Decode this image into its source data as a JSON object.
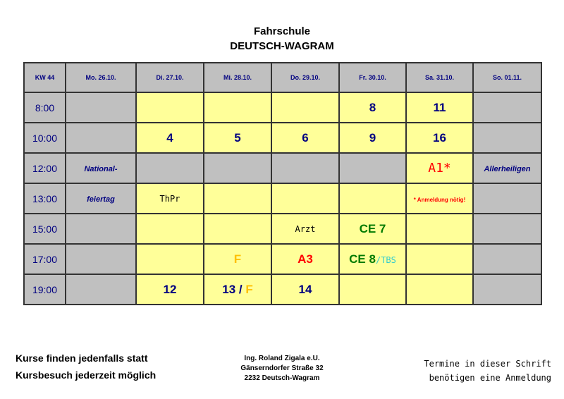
{
  "header": {
    "line1": "Fahrschule",
    "line2": "DEUTSCH-WAGRAM"
  },
  "colors": {
    "navy": "#000080",
    "grey": "#c0c0c0",
    "yellow": "#ffff99",
    "red": "#ff0000",
    "green": "#007a00",
    "orange": "#ffc000",
    "cyan": "#33cccc"
  },
  "table": {
    "week": "KW 44",
    "days": [
      "Mo. 26.10.",
      "Di. 27.10.",
      "Mi. 28.10.",
      "Do. 29.10.",
      "Fr. 30.10.",
      "Sa. 31.10.",
      "So. 01.11."
    ],
    "rows": [
      {
        "time": "8:00",
        "cells": [
          {
            "bg": "g"
          },
          {
            "bg": "y"
          },
          {
            "bg": "y"
          },
          {
            "bg": "y"
          },
          {
            "bg": "y",
            "parts": [
              {
                "t": "8",
                "c": "#000080",
                "k": "big"
              }
            ]
          },
          {
            "bg": "y",
            "parts": [
              {
                "t": "11",
                "c": "#000080",
                "k": "big"
              }
            ]
          },
          {
            "bg": "g"
          }
        ]
      },
      {
        "time": "10:00",
        "cells": [
          {
            "bg": "g"
          },
          {
            "bg": "y",
            "parts": [
              {
                "t": "4",
                "c": "#000080",
                "k": "big"
              }
            ]
          },
          {
            "bg": "y",
            "parts": [
              {
                "t": "5",
                "c": "#000080",
                "k": "big"
              }
            ]
          },
          {
            "bg": "y",
            "parts": [
              {
                "t": "6",
                "c": "#000080",
                "k": "big"
              }
            ]
          },
          {
            "bg": "y",
            "parts": [
              {
                "t": "9",
                "c": "#000080",
                "k": "big"
              }
            ]
          },
          {
            "bg": "y",
            "parts": [
              {
                "t": "16",
                "c": "#000080",
                "k": "big"
              }
            ]
          },
          {
            "bg": "g"
          }
        ]
      },
      {
        "time": "12:00",
        "cells": [
          {
            "bg": "g",
            "parts": [
              {
                "t": "National-",
                "c": "#000080",
                "k": "it"
              }
            ]
          },
          {
            "bg": "g"
          },
          {
            "bg": "g"
          },
          {
            "bg": "g"
          },
          {
            "bg": "g"
          },
          {
            "bg": "y",
            "parts": [
              {
                "t": "A1*",
                "c": "#ff0000",
                "k": "handbig"
              }
            ]
          },
          {
            "bg": "g",
            "parts": [
              {
                "t": "Allerheiligen",
                "c": "#000080",
                "k": "it"
              }
            ]
          }
        ]
      },
      {
        "time": "13:00",
        "cells": [
          {
            "bg": "g",
            "parts": [
              {
                "t": "feiertag",
                "c": "#000080",
                "k": "it"
              }
            ]
          },
          {
            "bg": "y",
            "parts": [
              {
                "t": "ThPr",
                "c": "#000",
                "k": "hand"
              }
            ]
          },
          {
            "bg": "y"
          },
          {
            "bg": "y"
          },
          {
            "bg": "y"
          },
          {
            "bg": "y",
            "parts": [
              {
                "t": "* Anmeldung nötig!",
                "c": "#ff0000",
                "k": "small"
              }
            ]
          },
          {
            "bg": "g"
          }
        ]
      },
      {
        "time": "15:00",
        "cells": [
          {
            "bg": "g"
          },
          {
            "bg": "y"
          },
          {
            "bg": "y"
          },
          {
            "bg": "y",
            "parts": [
              {
                "t": "Arzt",
                "c": "#000",
                "k": "hand"
              }
            ]
          },
          {
            "bg": "y",
            "parts": [
              {
                "t": "CE 7",
                "c": "#007a00",
                "k": "big"
              }
            ]
          },
          {
            "bg": "y"
          },
          {
            "bg": "g"
          }
        ]
      },
      {
        "time": "17:00",
        "cells": [
          {
            "bg": "g"
          },
          {
            "bg": "y"
          },
          {
            "bg": "y",
            "parts": [
              {
                "t": "F",
                "c": "#ffc000",
                "k": "big"
              }
            ]
          },
          {
            "bg": "y",
            "parts": [
              {
                "t": "A3",
                "c": "#ff0000",
                "k": "big"
              }
            ]
          },
          {
            "bg": "y",
            "parts": [
              {
                "t": "CE 8",
                "c": "#007a00",
                "k": "big"
              },
              {
                "t": "/TBS",
                "c": "#33cccc",
                "k": "hand"
              }
            ]
          },
          {
            "bg": "y"
          },
          {
            "bg": "g"
          }
        ]
      },
      {
        "time": "19:00",
        "cells": [
          {
            "bg": "g"
          },
          {
            "bg": "y",
            "parts": [
              {
                "t": "12",
                "c": "#000080",
                "k": "big"
              }
            ]
          },
          {
            "bg": "y",
            "parts": [
              {
                "t": "13 / ",
                "c": "#000080",
                "k": "big"
              },
              {
                "t": "F",
                "c": "#ffc000",
                "k": "big"
              }
            ]
          },
          {
            "bg": "y",
            "parts": [
              {
                "t": "14",
                "c": "#000080",
                "k": "big"
              }
            ]
          },
          {
            "bg": "y"
          },
          {
            "bg": "y"
          },
          {
            "bg": "g"
          }
        ]
      }
    ]
  },
  "footer": {
    "left1": "Kurse finden jedenfalls statt",
    "left2": "Kursbesuch jederzeit möglich",
    "addr1": "Ing. Roland Zigala e.U.",
    "addr2": "Gänserndorfer Straße 32",
    "addr3": "2232 Deutsch-Wagram",
    "right1": "Termine in dieser Schrift",
    "right2": "benötigen eine Anmeldung"
  }
}
